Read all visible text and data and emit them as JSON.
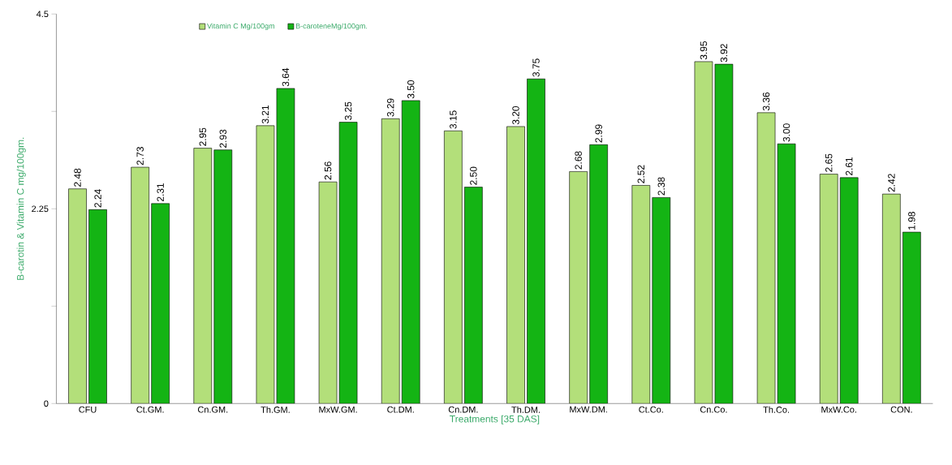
{
  "chart_data": {
    "type": "bar",
    "categories": [
      "CFU",
      "Ct.GM.",
      "Cn.GM.",
      "Th.GM.",
      "MxW.GM.",
      "Ct.DM.",
      "Cn.DM.",
      "Th.DM.",
      "MxW.DM.",
      "Ct.Co.",
      "Cn.Co.",
      "Th.Co.",
      "MxW.Co.",
      "CON."
    ],
    "series": [
      {
        "name": "Vitamin C Mg/100gm",
        "color": "#b3df7a",
        "values": [
          2.48,
          2.73,
          2.95,
          3.21,
          2.56,
          3.29,
          3.15,
          3.2,
          2.68,
          2.52,
          3.95,
          3.36,
          2.65,
          2.42
        ],
        "value_labels": [
          "2.48",
          "2.73",
          "2.95",
          "3.21",
          "2.56",
          "3.29",
          "3.15",
          "3.20",
          "2.68",
          "2.52",
          "3.95",
          "3.36",
          "2.65",
          "2.42"
        ]
      },
      {
        "name": "B-caroteneMg/100gm.",
        "color": "#14b414",
        "values": [
          2.24,
          2.31,
          2.93,
          3.64,
          3.25,
          3.5,
          2.5,
          3.75,
          2.99,
          2.38,
          3.92,
          3.0,
          2.61,
          1.98
        ],
        "value_labels": [
          "2.24",
          "2.31",
          "2.93",
          "3.64",
          "3.25",
          "3.50",
          "2.50",
          "3.75",
          "2.99",
          "2.38",
          "3.92",
          "3.00",
          "2.61",
          "1.98"
        ]
      }
    ],
    "xlabel": "Treatments [35 DAS]",
    "ylabel": "B-carotin & Vitamin C mg/100gm.",
    "ylim": [
      0,
      4.5
    ],
    "yticks": [
      0,
      {
        "value": 1.125,
        "label": null
      },
      2.25,
      {
        "value": 3.375,
        "label": null
      },
      4.5
    ],
    "legend": "top left",
    "grid": false
  }
}
